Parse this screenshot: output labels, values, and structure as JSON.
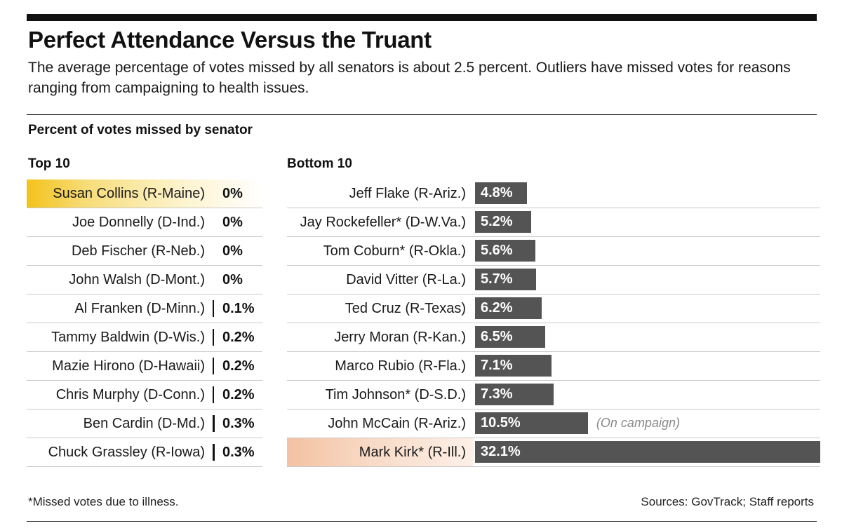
{
  "header": {
    "title": "Perfect Attendance Versus the Truant",
    "subtitle": "The average percentage of votes missed by all senators is about 2.5 percent. Outliers have missed votes for reasons ranging from campaigning to health issues."
  },
  "chart_data": {
    "type": "bar",
    "title": "Percent of votes missed by senator",
    "units": "percent",
    "bar_color": "#545454",
    "groups": [
      {
        "label": "Top 10",
        "categories": [
          "Susan Collins (R-Maine)",
          "Joe Donnelly (D-Ind.)",
          "Deb Fischer (R-Neb.)",
          "John Walsh (D-Mont.)",
          "Al Franken (D-Minn.)",
          "Tammy Baldwin (D-Wis.)",
          "Mazie Hirono (D-Hawaii)",
          "Chris Murphy (D-Conn.)",
          "Ben Cardin (D-Md.)",
          "Chuck Grassley (R-Iowa)"
        ],
        "values": [
          0,
          0,
          0,
          0,
          0.1,
          0.2,
          0.2,
          0.2,
          0.3,
          0.3
        ],
        "labels": [
          "0%",
          "0%",
          "0%",
          "0%",
          "0.1%",
          "0.2%",
          "0.2%",
          "0.2%",
          "0.3%",
          "0.3%"
        ],
        "highlight_index": 0,
        "highlight_color": "#f3c21b"
      },
      {
        "label": "Bottom 10",
        "categories": [
          "Jeff Flake (R-Ariz.)",
          "Jay Rockefeller* (D-W.Va.)",
          "Tom Coburn* (R-Okla.)",
          "David Vitter (R-La.)",
          "Ted Cruz (R-Texas)",
          "Jerry Moran (R-Kan.)",
          "Marco Rubio (R-Fla.)",
          "Tim Johnson* (D-S.D.)",
          "John McCain (R-Ariz.)",
          "Mark Kirk* (R-Ill.)"
        ],
        "values": [
          4.8,
          5.2,
          5.6,
          5.7,
          6.2,
          6.5,
          7.1,
          7.3,
          10.5,
          32.1
        ],
        "labels": [
          "4.8%",
          "5.2%",
          "5.6%",
          "5.7%",
          "6.2%",
          "6.5%",
          "7.1%",
          "7.3%",
          "10.5%",
          "32.1%"
        ],
        "annotations": [
          {
            "index": 8,
            "text": "(On campaign)"
          }
        ],
        "highlight_index": 9,
        "highlight_color": "#f4c1a2"
      }
    ]
  },
  "footer": {
    "footnote": "*Missed votes due to illness.",
    "sources": "Sources: GovTrack; Staff reports"
  }
}
